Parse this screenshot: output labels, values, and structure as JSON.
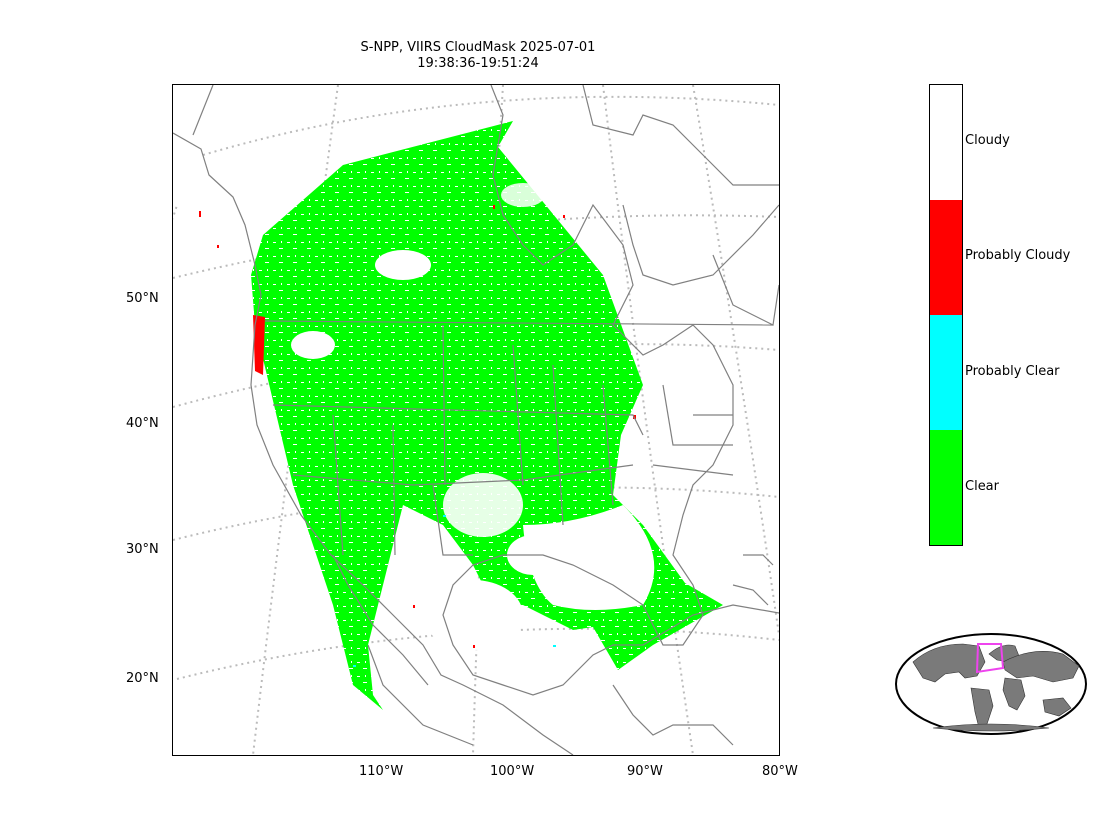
{
  "title": {
    "line1": "S-NPP, VIIRS CloudMask 2025-07-01",
    "line2": "19:38:36-19:51:24"
  },
  "axes": {
    "lat_labels": [
      "50°N",
      "40°N",
      "30°N",
      "20°N"
    ],
    "lon_labels": [
      "110°W",
      "100°W",
      "90°W",
      "80°W"
    ]
  },
  "colorbar": {
    "categories": [
      {
        "label": "Cloudy",
        "color": "#ffffff"
      },
      {
        "label": "Probably Cloudy",
        "color": "#ff0000"
      },
      {
        "label": "Probably Clear",
        "color": "#00ffff"
      },
      {
        "label": "Clear",
        "color": "#00ff00"
      }
    ]
  },
  "colors": {
    "clear": "#00ff00",
    "cloudy": "#ffffff",
    "probably_cloudy": "#ff0000",
    "probably_clear": "#00ffff",
    "coastline": "#808080",
    "gridline": "#bbbbbb",
    "inset_land": "#7a7a7a",
    "inset_box": "#ee44ee"
  },
  "icons": [
    "world-inset-map-icon"
  ]
}
